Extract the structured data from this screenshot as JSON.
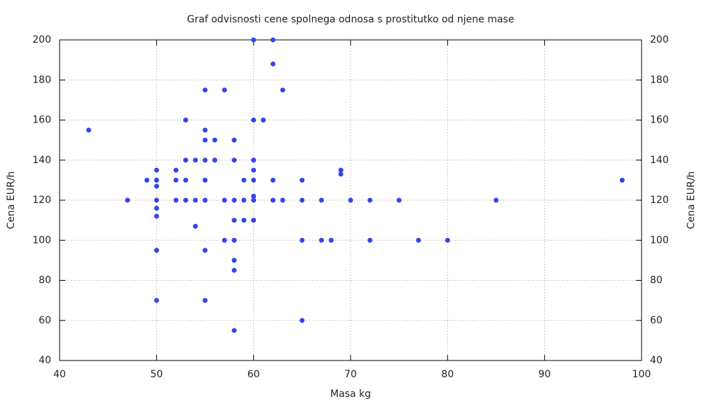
{
  "chart_data": {
    "type": "scatter",
    "title": "Graf odvisnosti cene spolnega odnosa s prostitutko od njene mase",
    "xlabel": "Masa kg",
    "ylabel": "Cena EUR/h",
    "y2label": "Cena EUR/h",
    "x": [
      43,
      47,
      49,
      50,
      50,
      50,
      50,
      50,
      50,
      50,
      50,
      52,
      52,
      52,
      53,
      53,
      53,
      53,
      54,
      54,
      54,
      55,
      55,
      55,
      55,
      55,
      55,
      55,
      55,
      56,
      56,
      57,
      57,
      57,
      58,
      58,
      58,
      58,
      58,
      58,
      58,
      58,
      59,
      59,
      59,
      60,
      60,
      60,
      60,
      60,
      60,
      60,
      60,
      61,
      62,
      62,
      62,
      62,
      63,
      63,
      65,
      65,
      65,
      65,
      67,
      67,
      68,
      69,
      69,
      70,
      72,
      72,
      75,
      77,
      80,
      85,
      98
    ],
    "series": [
      {
        "name": "Cena",
        "color": "#3344ee",
        "values": [
          155,
          120,
          130,
          135,
          130,
          127,
          120,
          116,
          112,
          95,
          70,
          135,
          130,
          120,
          160,
          140,
          130,
          120,
          140,
          120,
          107,
          175,
          155,
          150,
          140,
          130,
          120,
          95,
          70,
          150,
          140,
          175,
          120,
          100,
          150,
          140,
          120,
          110,
          100,
          90,
          85,
          55,
          130,
          120,
          110,
          200,
          160,
          140,
          135,
          130,
          122,
          120,
          110,
          160,
          200,
          188,
          130,
          120,
          175,
          120,
          130,
          120,
          100,
          60,
          120,
          100,
          100,
          135,
          133,
          120,
          120,
          100,
          120,
          100,
          100,
          120,
          130
        ]
      }
    ],
    "xlim": [
      40,
      100
    ],
    "xticks": [
      40,
      50,
      60,
      70,
      80,
      90,
      100
    ],
    "ylim": [
      40,
      200
    ],
    "yticks": [
      40,
      60,
      80,
      100,
      120,
      140,
      160,
      180,
      200
    ],
    "y2lim": [
      40,
      200
    ],
    "y2ticks": [
      40,
      60,
      80,
      100,
      120,
      140,
      160,
      180,
      200
    ],
    "grid": true
  }
}
